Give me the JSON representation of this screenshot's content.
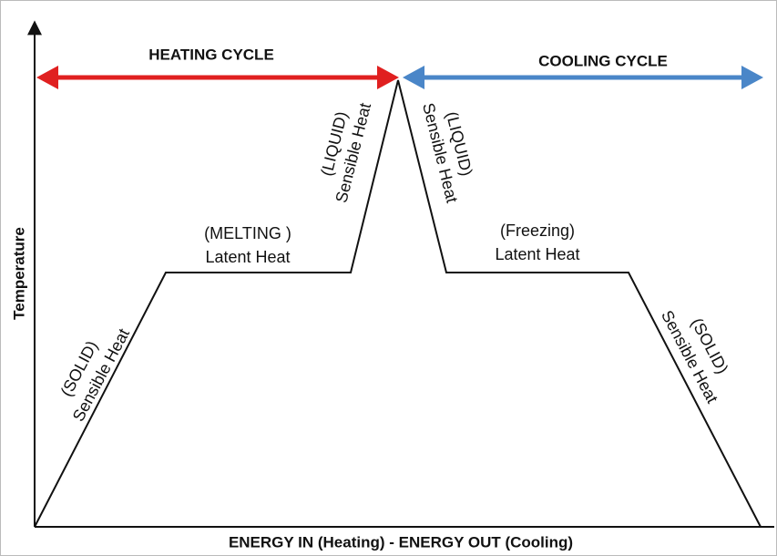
{
  "axes": {
    "y_label": "Temperature",
    "x_label": "ENERGY IN (Heating) - ENERGY OUT (Cooling)"
  },
  "cycles": [
    {
      "label": "HEATING CYCLE"
    },
    {
      "label": "COOLING CYCLE"
    }
  ],
  "stages": [
    {
      "state": "(SOLID)",
      "heat": "Sensible Heat"
    },
    {
      "state": "(MELTING )",
      "heat": "Latent Heat"
    },
    {
      "state": "(LIQUID)",
      "heat": "Sensible Heat"
    },
    {
      "state": "(LIQUID)",
      "heat": "Sensible Heat"
    },
    {
      "state": "(Freezing)",
      "heat": "Latent Heat"
    },
    {
      "state": "(SOLID)",
      "heat": "Sensible Heat"
    }
  ]
}
